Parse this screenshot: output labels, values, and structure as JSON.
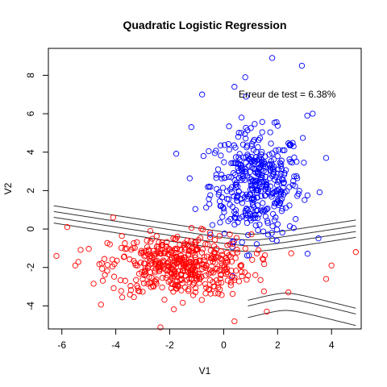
{
  "chart_data": {
    "type": "scatter",
    "title": "Quadratic Logistic Regression",
    "xlabel": "V1",
    "ylabel": "V2",
    "xlim": [
      -6.5,
      5.1
    ],
    "ylim": [
      -5.2,
      9.4
    ],
    "x_ticks": [
      -6,
      -4,
      -2,
      0,
      2,
      4
    ],
    "y_ticks": [
      -4,
      -2,
      0,
      2,
      4,
      6,
      8
    ],
    "grid": false,
    "legend": "none",
    "annotation": {
      "text": "Erreur de test = 6.38%",
      "x": 0.6,
      "y": 7.0
    },
    "series": [
      {
        "color": "#0000ff",
        "marker": "open-circle",
        "distribution": {
          "count": 420,
          "mean": [
            1.2,
            2.3
          ],
          "sd": [
            0.85,
            1.4
          ]
        },
        "points": [
          [
            1.8,
            8.9
          ],
          [
            0.8,
            7.9
          ],
          [
            -0.8,
            7.0
          ],
          [
            2.9,
            8.5
          ],
          [
            3.3,
            6.0
          ],
          [
            -1.2,
            5.3
          ],
          [
            3.1,
            5.9
          ],
          [
            0.4,
            7.4
          ],
          [
            3.8,
            3.7
          ]
        ]
      },
      {
        "color": "#ff0000",
        "marker": "open-circle",
        "distribution": {
          "count": 480,
          "mean": [
            -1.6,
            -1.9
          ],
          "sd": [
            1.3,
            0.8
          ]
        },
        "points": [
          [
            -6.2,
            -1.4
          ],
          [
            -5.8,
            0.1
          ],
          [
            -5.5,
            -1.9
          ],
          [
            -4.1,
            0.6
          ],
          [
            4.0,
            -1.9
          ],
          [
            4.9,
            -1.2
          ],
          [
            3.8,
            -2.6
          ],
          [
            1.6,
            -4.3
          ],
          [
            0.4,
            -4.8
          ],
          [
            2.4,
            -3.3
          ]
        ]
      }
    ],
    "decision_contours": [
      {
        "vertex": [
          1.0,
          -0.4
        ],
        "a": 0.22,
        "b": 0.35,
        "x_from": -6.3,
        "x_to": 4.9
      },
      {
        "vertex": [
          1.0,
          -0.7
        ],
        "a": 0.22,
        "b": 0.35,
        "x_from": -6.3,
        "x_to": 4.9
      },
      {
        "vertex": [
          1.0,
          -1.0
        ],
        "a": 0.22,
        "b": 0.35,
        "x_from": -6.3,
        "x_to": 4.9
      },
      {
        "vertex": [
          1.0,
          -1.3
        ],
        "a": 0.22,
        "b": 0.35,
        "x_from": -6.3,
        "x_to": 4.9
      },
      {
        "vertex": [
          2.3,
          -3.2
        ],
        "a": -0.35,
        "b": 0.15,
        "x_from": 0.9,
        "x_to": 4.9
      },
      {
        "vertex": [
          2.3,
          -3.5
        ],
        "a": -0.35,
        "b": 0.15,
        "x_from": 0.9,
        "x_to": 4.9
      },
      {
        "vertex": [
          2.3,
          -4.1
        ],
        "a": -0.35,
        "b": 0.15,
        "x_from": 0.9,
        "x_to": 4.9
      }
    ]
  }
}
